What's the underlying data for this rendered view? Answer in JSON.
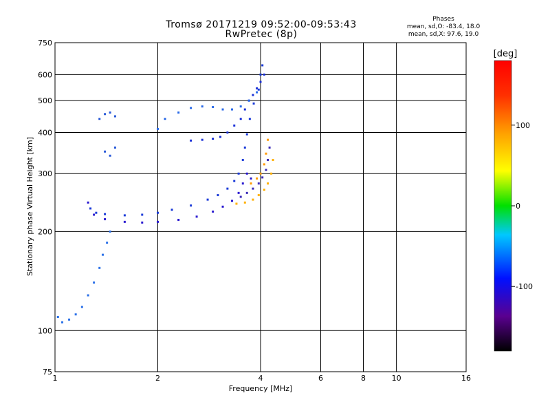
{
  "header": {
    "title": "Tromsø 20171219 09:52:00-09:53:43",
    "subtitle": "RwPretec (8p)"
  },
  "phases_box": {
    "title": "Phases",
    "line1": "mean, sd,O: -83.4, 18.0",
    "line2": "mean, sd,X:  97.6, 19.0"
  },
  "colorbar": {
    "unit_label": "[deg]",
    "ticks": [
      {
        "value": 100,
        "label": "100"
      },
      {
        "value": 0,
        "label": "0"
      },
      {
        "value": -100,
        "label": "-100"
      }
    ],
    "range": [
      -180,
      180
    ]
  },
  "chart_data": {
    "type": "scatter",
    "title": "Tromsø 20171219 09:52:00-09:53:43",
    "subtitle": "RwPretec (8p)",
    "xlabel": "Frequency [MHz]",
    "ylabel": "Stationary phase Virtual Height [km]",
    "x_scale": "log",
    "y_scale": "log",
    "xlim": [
      1,
      16
    ],
    "ylim": [
      75,
      750
    ],
    "x_ticks": [
      1,
      2,
      4,
      6,
      8,
      10,
      16
    ],
    "y_ticks": [
      75,
      100,
      200,
      300,
      400,
      500,
      600,
      750
    ],
    "x_gridlines": [
      2,
      4,
      6,
      8,
      10
    ],
    "y_gridlines": [
      100,
      200,
      300,
      400,
      500,
      600
    ],
    "grid": true,
    "legend": "colorbar right, phase in deg",
    "traces": [
      {
        "mode": "O",
        "color": "#1a3ad8",
        "points": [
          [
            1.27,
            235
          ],
          [
            1.32,
            228
          ],
          [
            1.4,
            226
          ],
          [
            1.6,
            224
          ],
          [
            1.8,
            225
          ],
          [
            2.0,
            228
          ],
          [
            2.2,
            233
          ],
          [
            2.5,
            240
          ],
          [
            2.8,
            250
          ],
          [
            3.0,
            258
          ],
          [
            3.2,
            270
          ],
          [
            3.35,
            285
          ],
          [
            3.45,
            300
          ],
          [
            3.55,
            330
          ],
          [
            3.6,
            360
          ],
          [
            3.65,
            395
          ],
          [
            3.72,
            440
          ],
          [
            3.82,
            490
          ],
          [
            3.95,
            540
          ],
          [
            4.0,
            600
          ],
          [
            4.05,
            640
          ]
        ]
      },
      {
        "mode": "O",
        "color": "#2a1ad0",
        "points": [
          [
            1.25,
            245
          ],
          [
            1.3,
            225
          ],
          [
            1.4,
            218
          ],
          [
            1.6,
            214
          ],
          [
            1.8,
            213
          ],
          [
            2.0,
            214
          ],
          [
            2.3,
            217
          ],
          [
            2.6,
            222
          ],
          [
            2.9,
            230
          ],
          [
            3.1,
            238
          ],
          [
            3.3,
            248
          ],
          [
            3.45,
            262
          ],
          [
            3.55,
            280
          ],
          [
            3.65,
            300
          ],
          [
            3.75,
            290
          ]
        ]
      },
      {
        "mode": "O",
        "color": "#3a2ab8",
        "points": [
          [
            3.5,
            255
          ],
          [
            3.65,
            262
          ],
          [
            3.8,
            270
          ],
          [
            3.95,
            280
          ],
          [
            4.05,
            292
          ],
          [
            4.15,
            308
          ],
          [
            4.2,
            330
          ],
          [
            4.25,
            360
          ]
        ]
      },
      {
        "mode": "O",
        "color": "#1a30d8",
        "points": [
          [
            2.5,
            378
          ],
          [
            2.7,
            380
          ],
          [
            2.9,
            383
          ],
          [
            3.05,
            388
          ],
          [
            3.2,
            400
          ],
          [
            3.35,
            420
          ],
          [
            3.5,
            440
          ],
          [
            3.6,
            470
          ],
          [
            3.7,
            500
          ],
          [
            3.8,
            520
          ],
          [
            3.9,
            545
          ],
          [
            4.0,
            570
          ],
          [
            4.1,
            600
          ]
        ]
      },
      {
        "mode": "O",
        "color": "#2a6ae8",
        "points": [
          [
            2.0,
            410
          ],
          [
            2.1,
            440
          ],
          [
            2.3,
            460
          ],
          [
            2.5,
            475
          ],
          [
            2.7,
            480
          ],
          [
            2.9,
            478
          ],
          [
            3.1,
            470
          ],
          [
            3.3,
            470
          ],
          [
            3.5,
            480
          ],
          [
            3.7,
            500
          ],
          [
            3.9,
            530
          ]
        ]
      },
      {
        "mode": "X",
        "color": "#ffb000",
        "points": [
          [
            3.4,
            243
          ],
          [
            3.6,
            245
          ],
          [
            3.8,
            250
          ],
          [
            3.95,
            258
          ],
          [
            4.1,
            268
          ],
          [
            4.2,
            280
          ],
          [
            4.3,
            300
          ],
          [
            4.35,
            330
          ]
        ]
      },
      {
        "mode": "X",
        "color": "#ff9a00",
        "points": [
          [
            3.75,
            280
          ],
          [
            3.9,
            290
          ],
          [
            4.0,
            300
          ],
          [
            4.1,
            320
          ],
          [
            4.15,
            345
          ],
          [
            4.2,
            380
          ]
        ]
      },
      {
        "mode": "O",
        "color": "#2a70e8",
        "points": [
          [
            1.02,
            110
          ],
          [
            1.05,
            106
          ],
          [
            1.1,
            108
          ],
          [
            1.15,
            112
          ],
          [
            1.2,
            118
          ],
          [
            1.25,
            128
          ],
          [
            1.3,
            140
          ],
          [
            1.35,
            155
          ],
          [
            1.38,
            170
          ],
          [
            1.42,
            185
          ],
          [
            1.45,
            200
          ]
        ]
      },
      {
        "mode": "O",
        "color": "#2a5ad8",
        "points": [
          [
            1.35,
            440
          ],
          [
            1.4,
            455
          ],
          [
            1.45,
            460
          ],
          [
            1.5,
            448
          ],
          [
            1.4,
            350
          ],
          [
            1.45,
            340
          ],
          [
            1.5,
            360
          ]
        ]
      }
    ]
  }
}
